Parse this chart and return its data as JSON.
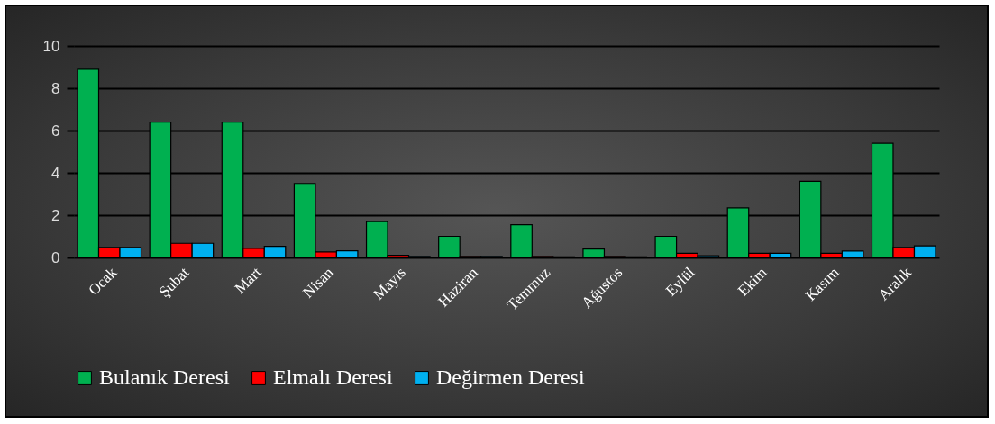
{
  "chart_data": {
    "type": "bar",
    "categories": [
      "Ocak",
      "Şubat",
      "Mart",
      "Nisan",
      "Mayıs",
      "Haziran",
      "Temmuz",
      "Ağustos",
      "Eylül",
      "Ekim",
      "Kasım",
      "Aralık"
    ],
    "series": [
      {
        "name": "Bulanık Deresi",
        "color": "#00b050",
        "values": [
          8.9,
          6.4,
          6.4,
          3.5,
          1.7,
          1.0,
          1.55,
          0.4,
          1.0,
          2.35,
          3.6,
          5.4
        ]
      },
      {
        "name": "Elmalı Deresi",
        "color": "#ff0000",
        "values": [
          0.47,
          0.67,
          0.43,
          0.26,
          0.1,
          0.05,
          0.05,
          0.05,
          0.2,
          0.2,
          0.2,
          0.47
        ]
      },
      {
        "name": "Değirmen Deresi",
        "color": "#00b0f0",
        "values": [
          0.47,
          0.67,
          0.53,
          0.31,
          0.05,
          0.05,
          0.03,
          0.03,
          0.08,
          0.2,
          0.3,
          0.55
        ]
      }
    ],
    "ylim": [
      0,
      10
    ],
    "yticks": [
      0,
      2,
      4,
      6,
      8,
      10
    ],
    "grid": "y",
    "legend": "bottom"
  }
}
